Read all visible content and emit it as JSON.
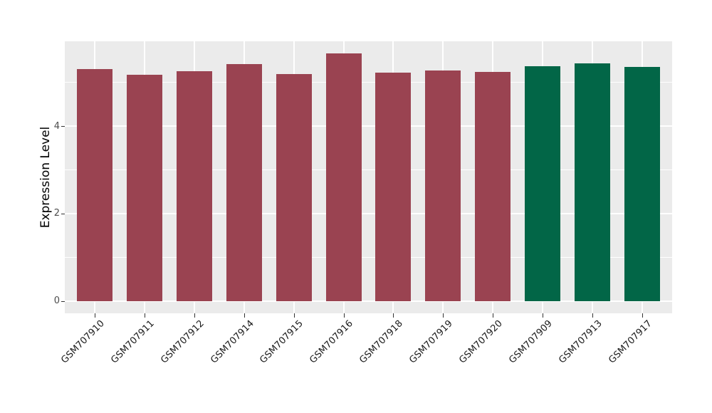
{
  "figure": {
    "background": "#ffffff",
    "panel_background": "#ebebeb",
    "grid_color": "#ffffff",
    "axis_text_color": "#4d4d4d",
    "axis_title_color": "#000000"
  },
  "chart_data": {
    "type": "bar",
    "title": "",
    "xlabel": "",
    "ylabel": "Expression Level",
    "categories": [
      "GSM707910",
      "GSM707911",
      "GSM707912",
      "GSM707914",
      "GSM707915",
      "GSM707916",
      "GSM707918",
      "GSM707919",
      "GSM707920",
      "GSM707909",
      "GSM707913",
      "GSM707917"
    ],
    "values": [
      5.3,
      5.18,
      5.25,
      5.42,
      5.19,
      5.67,
      5.23,
      5.27,
      5.24,
      5.37,
      5.44,
      5.36
    ],
    "bar_colors": [
      "#9a4351",
      "#9a4351",
      "#9a4351",
      "#9a4351",
      "#9a4351",
      "#9a4351",
      "#9a4351",
      "#9a4351",
      "#9a4351",
      "#026647",
      "#026647",
      "#026647"
    ],
    "color_groups": {
      "#9a4351": "maroon-group",
      "#026647": "green-group"
    },
    "y_ticks": [
      0,
      2,
      4
    ],
    "y_tick_labels": [
      "0",
      "2",
      "4"
    ],
    "y_minor_ticks": [
      1,
      3,
      5
    ],
    "ylim": [
      -0.28,
      5.94
    ],
    "x_label_angle_deg": 45,
    "grid": true,
    "legend_position": "none"
  }
}
